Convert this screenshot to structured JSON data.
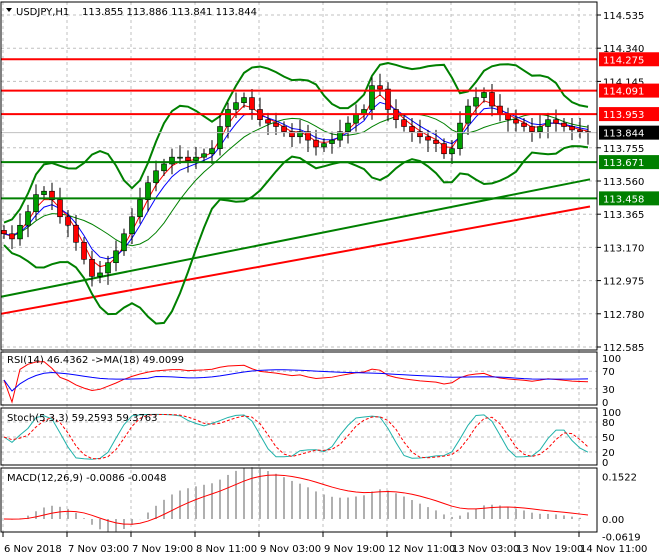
{
  "header": {
    "symbol": "USDJPY,H1",
    "ohlc": "113.855 113.886 113.841 113.844"
  },
  "chart_data": {
    "type": "candlestick",
    "symbol": "USDJPY",
    "timeframe": "H1",
    "price_axis": {
      "min": 112.585,
      "max": 114.535,
      "ticks": [
        "114.535",
        "114.340",
        "114.145",
        "113.755",
        "113.560",
        "113.365",
        "113.170",
        "112.975",
        "112.780",
        "112.585"
      ]
    },
    "time_labels": [
      "6 Nov 2018",
      "7 Nov 03:00",
      "7 Nov 19:00",
      "8 Nov 11:00",
      "9 Nov 03:00",
      "9 Nov 19:00",
      "12 Nov 11:00",
      "13 Nov 03:00",
      "13 Nov 19:00",
      "14 Nov 11:00"
    ],
    "closes": [
      113.25,
      113.22,
      113.3,
      113.38,
      113.48,
      113.5,
      113.45,
      113.35,
      113.3,
      113.2,
      113.1,
      113.0,
      113.02,
      113.08,
      113.15,
      113.25,
      113.35,
      113.45,
      113.55,
      113.62,
      113.66,
      113.7,
      113.7,
      113.68,
      113.7,
      113.72,
      113.75,
      113.88,
      113.98,
      114.02,
      114.05,
      113.98,
      113.92,
      113.9,
      113.88,
      113.85,
      113.82,
      113.85,
      113.8,
      113.76,
      113.78,
      113.8,
      113.85,
      113.9,
      113.95,
      113.98,
      114.12,
      114.1,
      113.98,
      113.92,
      113.88,
      113.85,
      113.82,
      113.8,
      113.78,
      113.72,
      113.75,
      113.9,
      114.0,
      114.05,
      114.08,
      114.0,
      113.95,
      113.92,
      113.9,
      113.88,
      113.85,
      113.88,
      113.92,
      113.9,
      113.88,
      113.86,
      113.85,
      113.844
    ],
    "current_price": {
      "value": "113.844",
      "color": "#000000"
    },
    "resistance_levels": [
      {
        "value": "114.275"
      },
      {
        "value": "114.091"
      },
      {
        "value": "113.953"
      }
    ],
    "support_levels": [
      {
        "value": "113.671"
      },
      {
        "value": "113.458"
      }
    ],
    "level_colors": {
      "resistance": "#ff0000",
      "support": "#008000"
    },
    "long_ma": [
      {
        "color": "#ff0000",
        "start": 112.78,
        "end": 113.41
      },
      {
        "color": "#008000",
        "start": 112.88,
        "end": 113.57
      }
    ],
    "indicators": {
      "rsi": {
        "label": "RSI(14) 46.4362  ->MA(18) 49.0099",
        "ticks": [
          "100",
          "70",
          "30",
          "0"
        ]
      },
      "stoch": {
        "label": "Stoch(5,3,3) 59.2593 59.3763",
        "ticks": [
          "100",
          "80",
          "50",
          "20",
          "0"
        ]
      },
      "macd": {
        "label": "MACD(12,26,9) -0.0086 -0.0048",
        "ticks": [
          "0.1522",
          "0.00",
          "-0.0619"
        ]
      }
    }
  }
}
